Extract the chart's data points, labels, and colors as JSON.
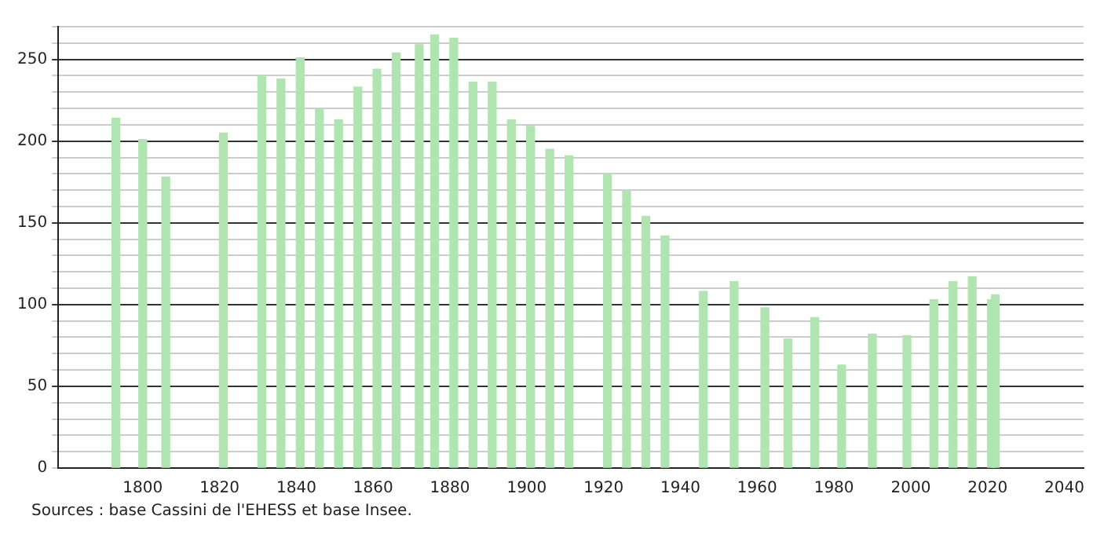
{
  "chart_data": {
    "type": "bar",
    "x": [
      1793,
      1800,
      1806,
      1821,
      1831,
      1836,
      1841,
      1846,
      1851,
      1856,
      1861,
      1866,
      1872,
      1876,
      1881,
      1886,
      1891,
      1896,
      1901,
      1906,
      1911,
      1921,
      1926,
      1931,
      1936,
      1946,
      1954,
      1962,
      1968,
      1975,
      1982,
      1990,
      1999,
      2006,
      2011,
      2016,
      2021,
      2022
    ],
    "series": [
      {
        "color": "#b0e4b0",
        "values": [
          214,
          201,
          178,
          205,
          240,
          238,
          251,
          220,
          213,
          233,
          244,
          254,
          259,
          265,
          263,
          236,
          236,
          213,
          209,
          195,
          191,
          180,
          170,
          154,
          142,
          108,
          114,
          98,
          79,
          92,
          63,
          82,
          81,
          103,
          114,
          117,
          103,
          106
        ]
      }
    ],
    "xlim": [
      1778,
      2045
    ],
    "xticks": [
      1800,
      1820,
      1840,
      1860,
      1880,
      1900,
      1920,
      1940,
      1960,
      1980,
      2000,
      2020,
      2040
    ],
    "ylim": [
      0,
      270
    ],
    "yticks": [
      0,
      {
        "value": 10,
        "label": null
      },
      {
        "value": 20,
        "label": null
      },
      {
        "value": 30,
        "label": null
      },
      {
        "value": 40,
        "label": null
      },
      50,
      {
        "value": 60,
        "label": null
      },
      {
        "value": 70,
        "label": null
      },
      {
        "value": 80,
        "label": null
      },
      {
        "value": 90,
        "label": null
      },
      100,
      {
        "value": 110,
        "label": null
      },
      {
        "value": 120,
        "label": null
      },
      {
        "value": 130,
        "label": null
      },
      {
        "value": 140,
        "label": null
      },
      150,
      {
        "value": 160,
        "label": null
      },
      {
        "value": 170,
        "label": null
      },
      {
        "value": 180,
        "label": null
      },
      {
        "value": 190,
        "label": null
      },
      200,
      {
        "value": 210,
        "label": null
      },
      {
        "value": 220,
        "label": null
      },
      {
        "value": 230,
        "label": null
      },
      {
        "value": 240,
        "label": null
      },
      250,
      {
        "value": 260,
        "label": null
      },
      {
        "value": 270,
        "label": null
      }
    ],
    "grid": "y",
    "annotations": [
      "Sources : base Cassini de l'EHESS et base Insee."
    ]
  }
}
